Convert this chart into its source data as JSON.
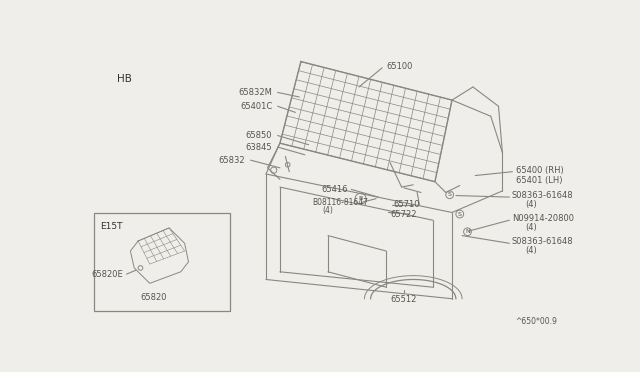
{
  "bg_color": "#f0eeea",
  "line_color": "#888880",
  "text_color": "#555550",
  "dark_color": "#333330",
  "title_text": "^650*00.9",
  "hb_label": "HB",
  "e15t_label": "E15T",
  "fs": 6.0
}
